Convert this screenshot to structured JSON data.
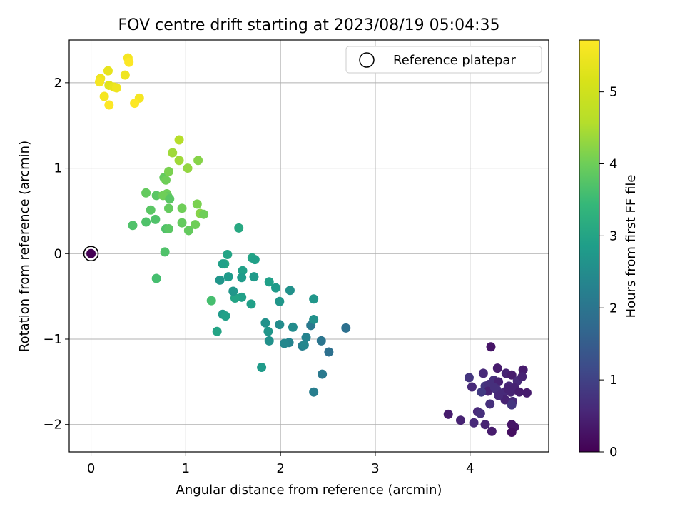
{
  "chart_data": {
    "type": "scatter",
    "title": "FOV centre drift starting at 2023/08/19 05:04:35",
    "xlabel": "Angular distance from reference (arcmin)",
    "ylabel": "Rotation from reference (arcmin)",
    "xlim": [
      -0.23,
      4.83
    ],
    "ylim": [
      -2.32,
      2.5
    ],
    "x_ticks": [
      0,
      1,
      2,
      3,
      4
    ],
    "y_ticks": [
      -2,
      -1,
      0,
      1,
      2
    ],
    "x_tick_labels": [
      "0",
      "1",
      "2",
      "3",
      "4"
    ],
    "y_tick_labels": [
      "−2",
      "−1",
      "0",
      "1",
      "2"
    ],
    "grid": true,
    "legend": {
      "placement": "top-right",
      "entries": [
        {
          "label": "Reference platepar",
          "marker": "open-circle"
        }
      ]
    },
    "colorbar": {
      "label": "Hours from first FF file",
      "colormap": "viridis",
      "range": [
        0,
        5.72
      ],
      "ticks": [
        0,
        1,
        2,
        3,
        4,
        5
      ],
      "tick_labels": [
        "0",
        "1",
        "2",
        "3",
        "4",
        "5"
      ]
    },
    "reference_point": {
      "x": 0,
      "y": 0,
      "hours": 0
    },
    "series": [
      {
        "points": [
          [
            4.22,
            -1.09,
            0.3
          ],
          [
            4.29,
            -1.34,
            0.4
          ],
          [
            4.14,
            -1.4,
            0.6
          ],
          [
            4.38,
            -1.4,
            0.5
          ],
          [
            4.44,
            -1.42,
            0.4
          ],
          [
            4.5,
            -1.49,
            0.6
          ],
          [
            4.56,
            -1.36,
            0.4
          ],
          [
            4.55,
            -1.44,
            0.5
          ],
          [
            3.99,
            -1.45,
            0.8
          ],
          [
            4.25,
            -1.48,
            0.7
          ],
          [
            4.3,
            -1.5,
            0.5
          ],
          [
            4.16,
            -1.55,
            0.8
          ],
          [
            4.2,
            -1.53,
            0.7
          ],
          [
            4.41,
            -1.55,
            0.6
          ],
          [
            4.47,
            -1.57,
            0.5
          ],
          [
            4.02,
            -1.56,
            0.6
          ],
          [
            4.19,
            -1.61,
            0.5
          ],
          [
            4.28,
            -1.59,
            0.7
          ],
          [
            4.35,
            -1.63,
            0.6
          ],
          [
            4.43,
            -1.62,
            0.5
          ],
          [
            4.52,
            -1.62,
            0.4
          ],
          [
            4.6,
            -1.63,
            0.4
          ],
          [
            4.37,
            -1.71,
            0.5
          ],
          [
            4.45,
            -1.73,
            0.6
          ],
          [
            4.21,
            -1.76,
            0.7
          ],
          [
            4.44,
            -1.77,
            0.8
          ],
          [
            4.08,
            -1.85,
            0.6
          ],
          [
            4.11,
            -1.87,
            0.7
          ],
          [
            3.77,
            -1.88,
            0.4
          ],
          [
            3.9,
            -1.95,
            0.5
          ],
          [
            4.04,
            -1.98,
            0.6
          ],
          [
            4.16,
            -2.0,
            0.5
          ],
          [
            4.23,
            -2.08,
            0.4
          ],
          [
            4.44,
            -2.0,
            0.3
          ],
          [
            4.47,
            -2.03,
            0.3
          ],
          [
            4.44,
            -2.09,
            0.2
          ],
          [
            4.12,
            -1.62,
            0.9
          ],
          [
            4.3,
            -1.66,
            0.6
          ],
          [
            4.4,
            -1.58,
            0.5
          ],
          [
            4.26,
            -1.57,
            0.7
          ],
          [
            2.23,
            -1.08,
            2.2
          ],
          [
            2.32,
            -0.84,
            2.1
          ],
          [
            2.43,
            -1.02,
            2.0
          ],
          [
            2.51,
            -1.15,
            1.9
          ],
          [
            2.69,
            -0.87,
            1.9
          ],
          [
            2.27,
            -0.98,
            2.3
          ],
          [
            2.25,
            -1.07,
            2.4
          ],
          [
            2.35,
            -1.62,
            2.2
          ],
          [
            2.44,
            -1.41,
            2.1
          ],
          [
            2.35,
            -0.77,
            2.6
          ],
          [
            2.35,
            -0.53,
            2.7
          ],
          [
            2.1,
            -0.43,
            2.6
          ],
          [
            2.13,
            -0.86,
            2.5
          ],
          [
            2.09,
            -1.04,
            2.3
          ],
          [
            2.04,
            -1.05,
            2.4
          ],
          [
            1.95,
            -0.4,
            2.8
          ],
          [
            1.99,
            -0.56,
            2.7
          ],
          [
            1.99,
            -0.83,
            2.5
          ],
          [
            1.88,
            -0.33,
            2.9
          ],
          [
            1.84,
            -0.81,
            2.6
          ],
          [
            1.87,
            -0.91,
            2.7
          ],
          [
            1.88,
            -1.02,
            2.6
          ],
          [
            1.8,
            -1.33,
            2.8
          ],
          [
            1.7,
            -0.05,
            3.0
          ],
          [
            1.73,
            -0.07,
            2.9
          ],
          [
            1.72,
            -0.27,
            2.8
          ],
          [
            1.6,
            -0.2,
            2.9
          ],
          [
            1.59,
            -0.28,
            2.8
          ],
          [
            1.69,
            -0.59,
            2.9
          ],
          [
            1.59,
            -0.51,
            2.9
          ],
          [
            1.52,
            -0.52,
            3.0
          ],
          [
            1.5,
            -0.44,
            2.7
          ],
          [
            1.56,
            0.3,
            3.1
          ],
          [
            1.44,
            -0.01,
            3.0
          ],
          [
            1.41,
            -0.12,
            3.1
          ],
          [
            1.39,
            -0.12,
            2.9
          ],
          [
            1.45,
            -0.27,
            2.8
          ],
          [
            1.36,
            -0.31,
            2.7
          ],
          [
            1.39,
            -0.71,
            2.8
          ],
          [
            1.42,
            -0.73,
            2.9
          ],
          [
            1.33,
            -0.91,
            3.0
          ],
          [
            1.27,
            -0.55,
            3.6
          ],
          [
            0.44,
            0.33,
            3.7
          ],
          [
            0.58,
            0.37,
            3.7
          ],
          [
            0.63,
            0.51,
            3.8
          ],
          [
            0.68,
            0.4,
            3.7
          ],
          [
            0.58,
            0.71,
            3.9
          ],
          [
            0.69,
            0.68,
            3.8
          ],
          [
            0.77,
            0.89,
            3.9
          ],
          [
            0.8,
            0.7,
            4.0
          ],
          [
            0.81,
            0.67,
            3.9
          ],
          [
            0.76,
            0.68,
            4.0
          ],
          [
            0.79,
            0.86,
            4.0
          ],
          [
            0.82,
            0.96,
            4.1
          ],
          [
            0.82,
            0.53,
            3.9
          ],
          [
            0.83,
            0.64,
            3.8
          ],
          [
            0.79,
            0.29,
            3.7
          ],
          [
            0.82,
            0.29,
            3.8
          ],
          [
            0.78,
            0.02,
            3.7
          ],
          [
            0.69,
            -0.29,
            3.6
          ],
          [
            0.96,
            0.53,
            4.0
          ],
          [
            0.96,
            0.36,
            3.9
          ],
          [
            1.03,
            0.27,
            3.9
          ],
          [
            1.1,
            0.34,
            4.0
          ],
          [
            1.12,
            0.58,
            4.1
          ],
          [
            1.15,
            0.47,
            4.2
          ],
          [
            1.19,
            0.46,
            4.0
          ],
          [
            1.02,
            1.0,
            4.3
          ],
          [
            0.93,
            1.09,
            4.4
          ],
          [
            0.86,
            1.18,
            4.4
          ],
          [
            1.13,
            1.09,
            4.2
          ],
          [
            0.93,
            1.33,
            4.6
          ],
          [
            0.39,
            2.29,
            5.6
          ],
          [
            0.4,
            2.24,
            5.7
          ],
          [
            0.36,
            2.09,
            5.5
          ],
          [
            0.51,
            1.82,
            5.6
          ],
          [
            0.46,
            1.76,
            5.7
          ],
          [
            0.18,
            2.14,
            5.4
          ],
          [
            0.1,
            2.05,
            5.5
          ],
          [
            0.09,
            2.01,
            5.6
          ],
          [
            0.19,
            1.97,
            5.3
          ],
          [
            0.24,
            1.95,
            5.4
          ],
          [
            0.27,
            1.94,
            5.5
          ],
          [
            0.14,
            1.84,
            5.6
          ],
          [
            0.19,
            1.74,
            5.7
          ]
        ]
      }
    ]
  }
}
